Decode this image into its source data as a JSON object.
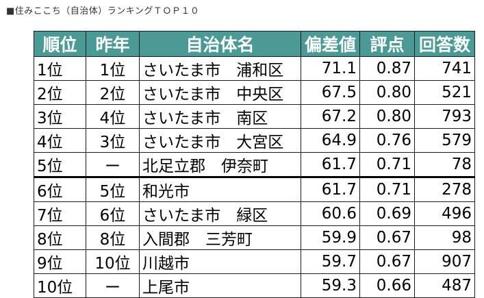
{
  "caption": "■住みここち（自治体）ランキングＴＯＰ１０",
  "colors": {
    "header_bg": "#4c9a96",
    "header_text": "#ffffff",
    "border": "#1a1a1a"
  },
  "table": {
    "headers": [
      "順位",
      "昨年",
      "自治体名",
      "偏差値",
      "評点",
      "回答数"
    ],
    "rows": [
      [
        "1位",
        "1位",
        "さいたま市　浦和区",
        "71.1",
        "0.87",
        "741"
      ],
      [
        "2位",
        "2位",
        "さいたま市　中央区",
        "67.5",
        "0.80",
        "521"
      ],
      [
        "3位",
        "4位",
        "さいたま市　南区",
        "67.2",
        "0.80",
        "793"
      ],
      [
        "4位",
        "3位",
        "さいたま市　大宮区",
        "64.9",
        "0.76",
        "579"
      ],
      [
        "5位",
        "ー",
        "北足立郡　伊奈町",
        "61.7",
        "0.71",
        "78"
      ],
      [
        "6位",
        "5位",
        "和光市",
        "61.7",
        "0.71",
        "278"
      ],
      [
        "7位",
        "6位",
        "さいたま市　緑区",
        "60.6",
        "0.69",
        "496"
      ],
      [
        "8位",
        "8位",
        "入間郡　三芳町",
        "59.9",
        "0.67",
        "98"
      ],
      [
        "9位",
        "10位",
        "川越市",
        "59.7",
        "0.67",
        "907"
      ],
      [
        "10位",
        "ー",
        "上尾市",
        "59.3",
        "0.66",
        "487"
      ]
    ]
  }
}
